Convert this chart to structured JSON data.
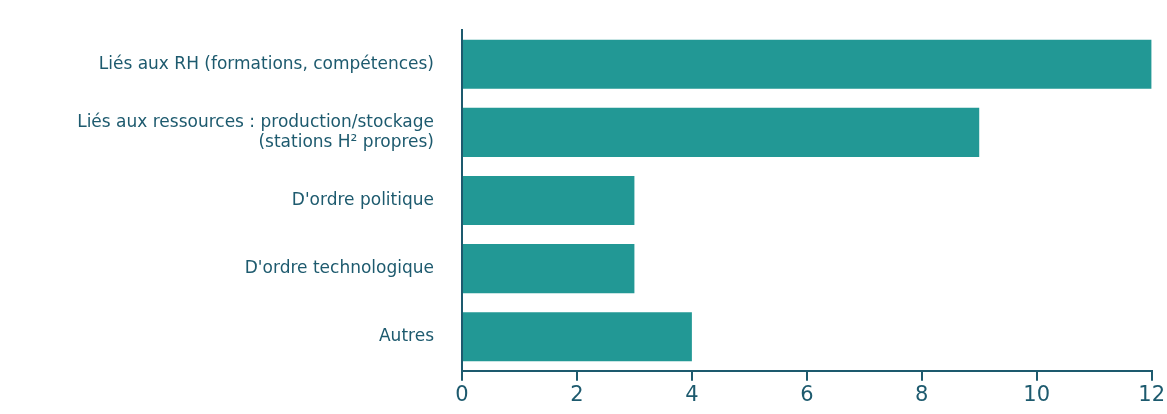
{
  "chart_data": {
    "type": "bar",
    "orientation": "horizontal",
    "categories": [
      "Liés aux RH (formations, compétences)",
      "Liés aux ressources : production/stockage (stations H² propres)",
      "D'ordre politique",
      "D'ordre technologique",
      "Autres"
    ],
    "values": [
      12,
      9,
      3,
      3,
      4
    ],
    "color": "#229895",
    "xlim": [
      0,
      12
    ],
    "xticks": [
      0,
      2,
      4,
      6,
      8,
      10,
      12
    ],
    "grid": false,
    "legend": false
  }
}
